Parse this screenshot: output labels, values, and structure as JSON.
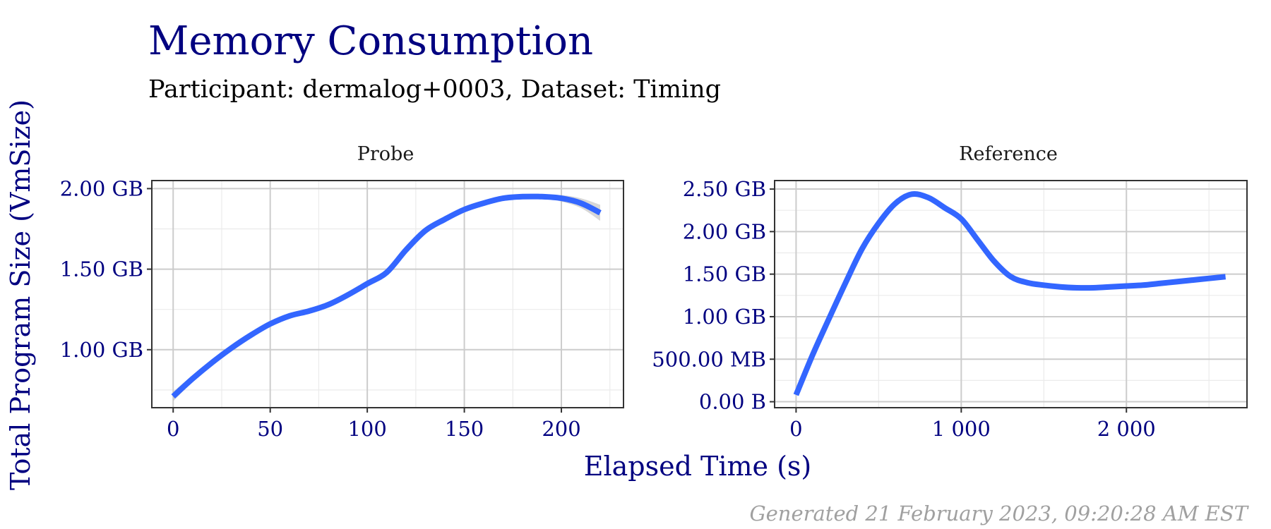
{
  "title": "Memory Consumption",
  "subtitle": "Participant: dermalog+0003, Dataset: Timing",
  "caption": "Generated 21 February 2023, 09:20:28 AM EST",
  "colors": {
    "accent": "#000080",
    "line": "#3366FF",
    "ribbon": "#BDBDBD",
    "grid_major": "#CCCCCC",
    "grid_minor": "#EBEBEB",
    "caption": "#A0A0A0"
  },
  "chart_data": [
    {
      "type": "line",
      "panel": "Probe",
      "xlabel": "Elapsed Time (s)",
      "ylabel": "Total Program Size (VmSize)",
      "xlim": [
        -11,
        232
      ],
      "ylim": [
        0.64,
        2.05
      ],
      "x_ticks": [
        0,
        50,
        100,
        150,
        200
      ],
      "x_tick_labels": [
        "0",
        "50",
        "100",
        "150",
        "200"
      ],
      "y_ticks": [
        1.0,
        1.5,
        2.0
      ],
      "y_tick_labels": [
        "1.00 GB",
        "1.50 GB",
        "2.00 GB"
      ],
      "grid": true,
      "series": [
        {
          "x": [
            0,
            10,
            20,
            30,
            40,
            50,
            60,
            70,
            80,
            90,
            100,
            110,
            120,
            130,
            140,
            150,
            160,
            170,
            180,
            190,
            200,
            210,
            220
          ],
          "y": [
            0.71,
            0.82,
            0.92,
            1.01,
            1.09,
            1.16,
            1.21,
            1.24,
            1.28,
            1.34,
            1.41,
            1.48,
            1.62,
            1.74,
            1.81,
            1.87,
            1.91,
            1.94,
            1.95,
            1.95,
            1.94,
            1.91,
            1.85
          ],
          "lower": [
            0.68,
            0.8,
            0.91,
            1.0,
            1.08,
            1.15,
            1.2,
            1.23,
            1.27,
            1.33,
            1.4,
            1.47,
            1.61,
            1.73,
            1.8,
            1.86,
            1.9,
            1.93,
            1.94,
            1.94,
            1.92,
            1.88,
            1.8
          ],
          "upper": [
            0.74,
            0.84,
            0.93,
            1.02,
            1.1,
            1.17,
            1.22,
            1.25,
            1.29,
            1.35,
            1.42,
            1.49,
            1.63,
            1.75,
            1.82,
            1.88,
            1.92,
            1.95,
            1.96,
            1.96,
            1.96,
            1.94,
            1.9
          ]
        }
      ]
    },
    {
      "type": "line",
      "panel": "Reference",
      "xlabel": "Elapsed Time (s)",
      "ylabel": "Total Program Size (VmSize)",
      "xlim": [
        -130,
        2730
      ],
      "ylim": [
        -0.07,
        2.6
      ],
      "x_ticks": [
        0,
        1000,
        2000
      ],
      "x_tick_labels": [
        "0",
        "1 000",
        "2 000"
      ],
      "y_ticks": [
        0,
        0.5,
        1.0,
        1.5,
        2.0,
        2.5
      ],
      "y_tick_labels": [
        "0.00 B",
        "500.00 MB",
        "1.00 GB",
        "1.50 GB",
        "2.00 GB",
        "2.50 GB"
      ],
      "grid": true,
      "series": [
        {
          "x": [
            0,
            100,
            200,
            300,
            400,
            500,
            600,
            700,
            800,
            900,
            1000,
            1100,
            1200,
            1300,
            1400,
            1500,
            1600,
            1700,
            1800,
            1900,
            2000,
            2100,
            2200,
            2300,
            2400,
            2500,
            2600
          ],
          "y": [
            0.08,
            0.55,
            0.98,
            1.4,
            1.8,
            2.1,
            2.33,
            2.44,
            2.4,
            2.28,
            2.15,
            1.9,
            1.65,
            1.47,
            1.4,
            1.37,
            1.35,
            1.34,
            1.34,
            1.35,
            1.36,
            1.37,
            1.39,
            1.41,
            1.43,
            1.45,
            1.47
          ]
        }
      ]
    }
  ]
}
